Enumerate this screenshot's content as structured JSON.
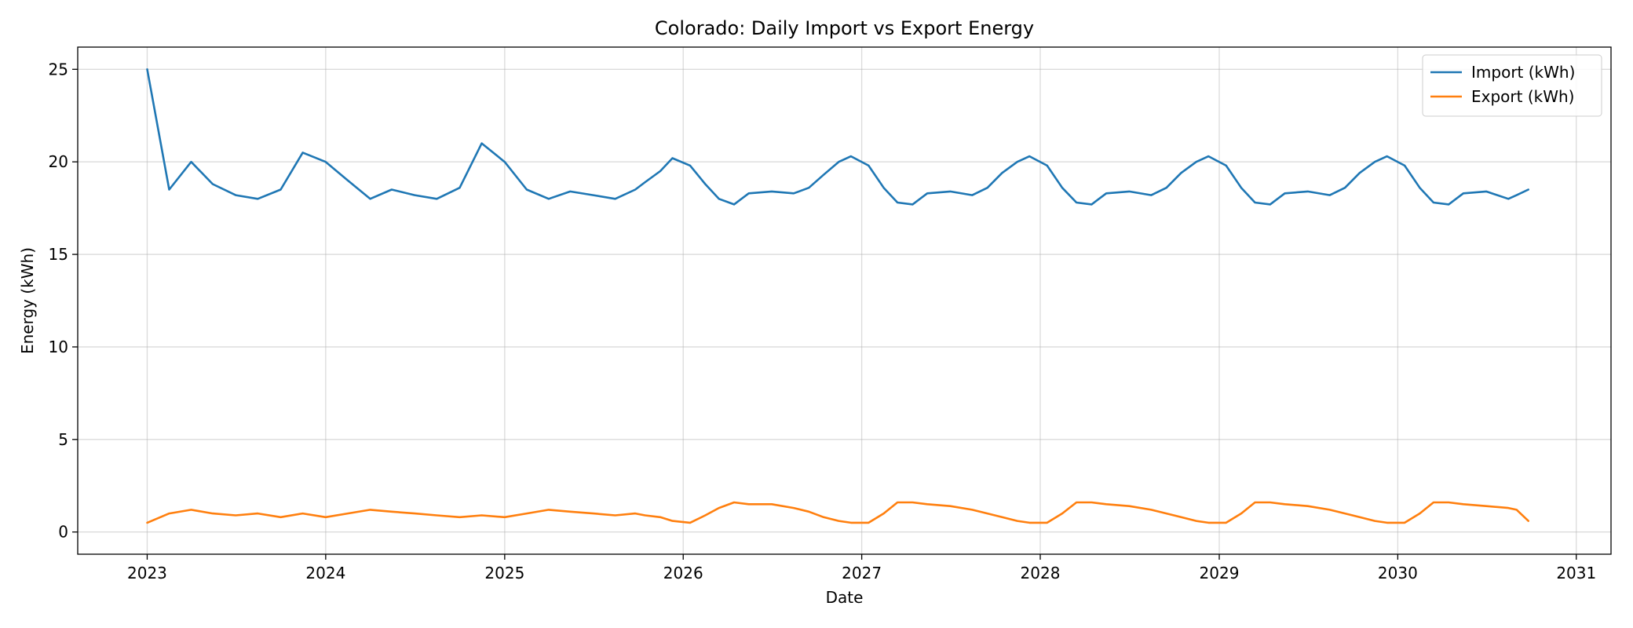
{
  "chart_data": {
    "type": "line",
    "title": "Colorado: Daily Import vs Export Energy",
    "xlabel": "Date",
    "ylabel": "Energy (kWh)",
    "x_range": [
      "2022-08-12",
      "2031-03-13"
    ],
    "ylim": [
      -1.2,
      26.2
    ],
    "x_ticks": [
      "2023",
      "2024",
      "2025",
      "2026",
      "2027",
      "2028",
      "2029",
      "2030",
      "2031"
    ],
    "y_ticks": [
      "0",
      "5",
      "10",
      "15",
      "20",
      "25"
    ],
    "grid": true,
    "legend_position": "top-right",
    "series_colors": {
      "import": "#1f77b4",
      "export": "#ff7f0e"
    },
    "series": [
      {
        "name": "Import (kWh)",
        "color": "#1f77b4",
        "x": [
          "2023-01-01",
          "2023-02-15",
          "2023-04-01",
          "2023-05-15",
          "2023-07-01",
          "2023-08-15",
          "2023-10-01",
          "2023-11-15",
          "2024-01-01",
          "2024-02-15",
          "2024-04-01",
          "2024-05-15",
          "2024-07-01",
          "2024-08-15",
          "2024-10-01",
          "2024-11-15",
          "2025-01-01",
          "2025-02-15",
          "2025-04-01",
          "2025-05-15",
          "2025-07-01",
          "2025-08-15",
          "2025-09-25",
          "2025-10-15",
          "2025-11-15",
          "2025-12-10",
          "2026-01-15",
          "2026-02-15",
          "2026-03-15",
          "2026-04-15",
          "2026-05-15",
          "2026-07-01",
          "2026-08-15",
          "2026-09-15",
          "2026-10-15",
          "2026-11-15",
          "2026-12-10",
          "2027-01-15",
          "2027-02-15",
          "2027-03-15",
          "2027-04-15",
          "2027-05-15",
          "2027-07-01",
          "2027-08-15",
          "2027-09-15",
          "2027-10-15",
          "2027-11-15",
          "2027-12-10",
          "2028-01-15",
          "2028-02-15",
          "2028-03-15",
          "2028-04-15",
          "2028-05-15",
          "2028-07-01",
          "2028-08-15",
          "2028-09-15",
          "2028-10-15",
          "2028-11-15",
          "2028-12-10",
          "2029-01-15",
          "2029-02-15",
          "2029-03-15",
          "2029-04-15",
          "2029-05-15",
          "2029-07-01",
          "2029-08-15",
          "2029-09-15",
          "2029-10-15",
          "2029-11-15",
          "2029-12-10",
          "2030-01-15",
          "2030-02-15",
          "2030-03-15",
          "2030-04-15",
          "2030-05-15",
          "2030-07-01",
          "2030-08-15",
          "2030-09-01",
          "2030-09-25"
        ],
        "values": [
          25.0,
          18.5,
          20.0,
          18.8,
          18.2,
          18.0,
          18.5,
          20.5,
          20.0,
          19.0,
          18.0,
          18.5,
          18.2,
          18.0,
          18.6,
          21.0,
          20.0,
          18.5,
          18.0,
          18.4,
          18.2,
          18.0,
          18.5,
          18.9,
          19.5,
          20.2,
          19.8,
          18.8,
          18.0,
          17.7,
          18.3,
          18.4,
          18.3,
          18.6,
          19.3,
          20.0,
          20.3,
          19.8,
          18.6,
          17.8,
          17.7,
          18.3,
          18.4,
          18.2,
          18.6,
          19.4,
          20.0,
          20.3,
          19.8,
          18.6,
          17.8,
          17.7,
          18.3,
          18.4,
          18.2,
          18.6,
          19.4,
          20.0,
          20.3,
          19.8,
          18.6,
          17.8,
          17.7,
          18.3,
          18.4,
          18.2,
          18.6,
          19.4,
          20.0,
          20.3,
          19.8,
          18.6,
          17.8,
          17.7,
          18.3,
          18.4,
          18.0,
          18.2,
          18.5
        ]
      },
      {
        "name": "Export (kWh)",
        "color": "#ff7f0e",
        "x": [
          "2023-01-01",
          "2023-02-15",
          "2023-04-01",
          "2023-05-15",
          "2023-07-01",
          "2023-08-15",
          "2023-10-01",
          "2023-11-15",
          "2024-01-01",
          "2024-02-15",
          "2024-04-01",
          "2024-05-15",
          "2024-07-01",
          "2024-08-15",
          "2024-10-01",
          "2024-11-15",
          "2025-01-01",
          "2025-02-15",
          "2025-04-01",
          "2025-05-15",
          "2025-07-01",
          "2025-08-15",
          "2025-09-25",
          "2025-10-15",
          "2025-11-15",
          "2025-12-10",
          "2026-01-15",
          "2026-02-15",
          "2026-03-15",
          "2026-04-15",
          "2026-05-15",
          "2026-07-01",
          "2026-08-15",
          "2026-09-15",
          "2026-10-15",
          "2026-11-15",
          "2026-12-10",
          "2027-01-15",
          "2027-02-15",
          "2027-03-15",
          "2027-04-15",
          "2027-05-15",
          "2027-07-01",
          "2027-08-15",
          "2027-09-15",
          "2027-10-15",
          "2027-11-15",
          "2027-12-10",
          "2028-01-15",
          "2028-02-15",
          "2028-03-15",
          "2028-04-15",
          "2028-05-15",
          "2028-07-01",
          "2028-08-15",
          "2028-09-15",
          "2028-10-15",
          "2028-11-15",
          "2028-12-10",
          "2029-01-15",
          "2029-02-15",
          "2029-03-15",
          "2029-04-15",
          "2029-05-15",
          "2029-07-01",
          "2029-08-15",
          "2029-09-15",
          "2029-10-15",
          "2029-11-15",
          "2029-12-10",
          "2030-01-15",
          "2030-02-15",
          "2030-03-15",
          "2030-04-15",
          "2030-05-15",
          "2030-07-01",
          "2030-08-15",
          "2030-09-01",
          "2030-09-25"
        ],
        "values": [
          0.5,
          1.0,
          1.2,
          1.0,
          0.9,
          1.0,
          0.8,
          1.0,
          0.8,
          1.0,
          1.2,
          1.1,
          1.0,
          0.9,
          0.8,
          0.9,
          0.8,
          1.0,
          1.2,
          1.1,
          1.0,
          0.9,
          1.0,
          0.9,
          0.8,
          0.6,
          0.5,
          0.9,
          1.3,
          1.6,
          1.5,
          1.5,
          1.3,
          1.1,
          0.8,
          0.6,
          0.5,
          0.5,
          1.0,
          1.6,
          1.6,
          1.5,
          1.4,
          1.2,
          1.0,
          0.8,
          0.6,
          0.5,
          0.5,
          1.0,
          1.6,
          1.6,
          1.5,
          1.4,
          1.2,
          1.0,
          0.8,
          0.6,
          0.5,
          0.5,
          1.0,
          1.6,
          1.6,
          1.5,
          1.4,
          1.2,
          1.0,
          0.8,
          0.6,
          0.5,
          0.5,
          1.0,
          1.6,
          1.6,
          1.5,
          1.4,
          1.3,
          1.2,
          0.6
        ]
      }
    ]
  }
}
